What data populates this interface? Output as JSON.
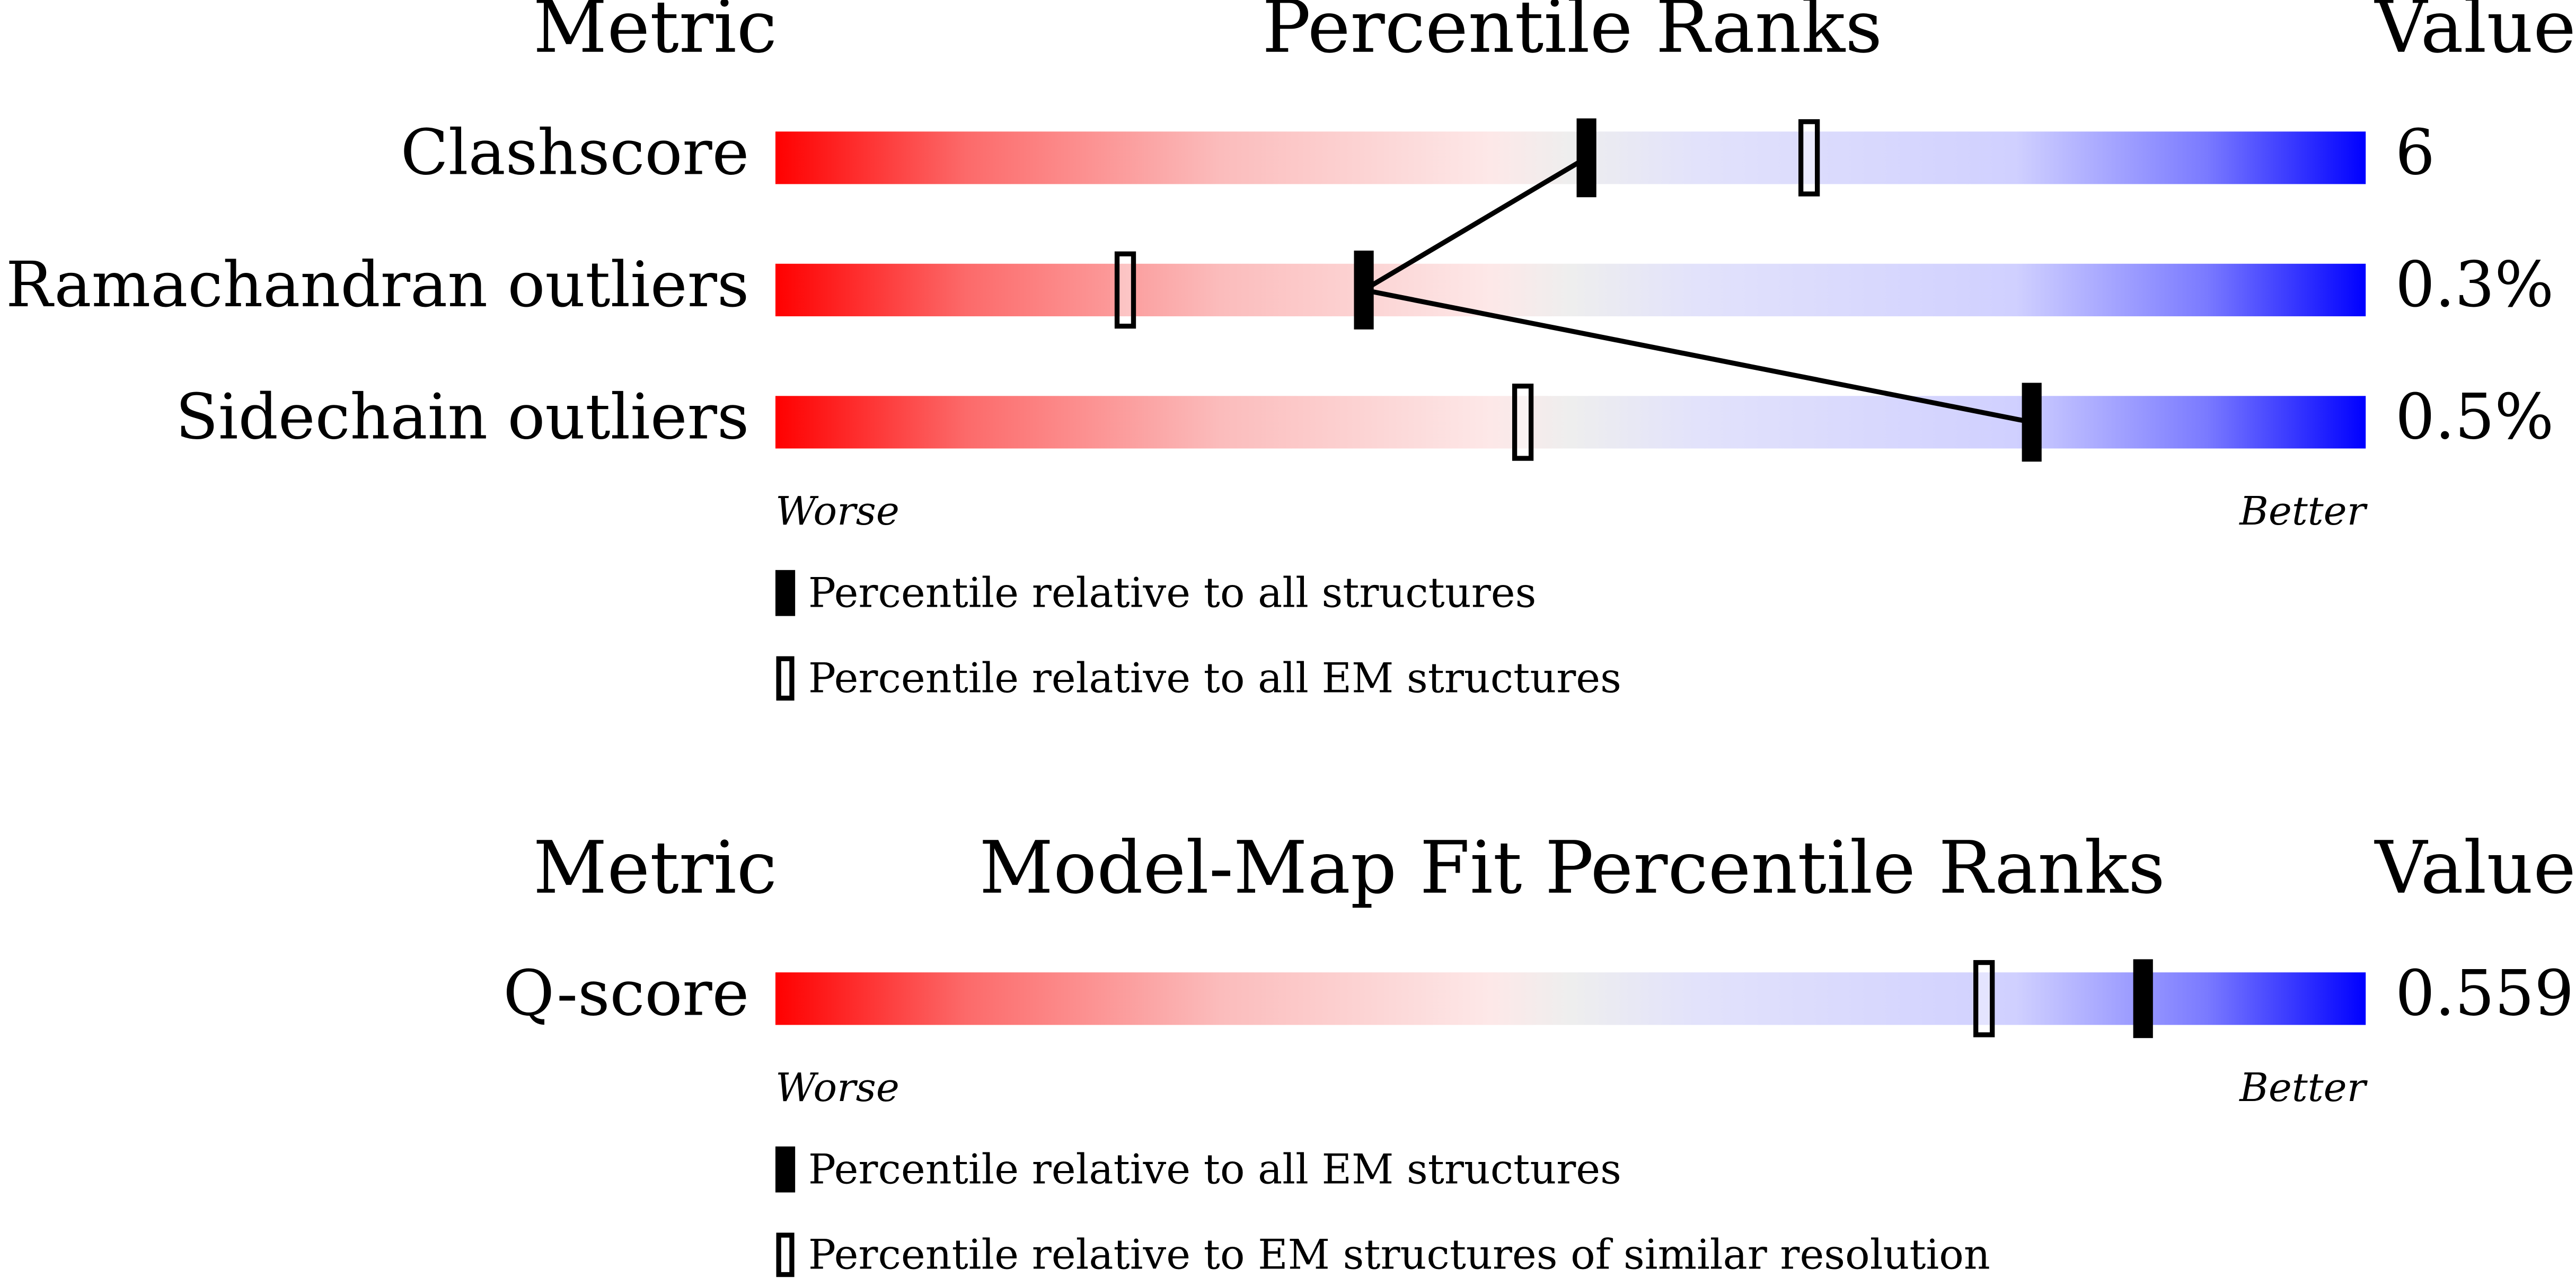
{
  "chart_data": [
    {
      "type": "percentile-slider",
      "metric_header": "Metric",
      "title": "Percentile Ranks",
      "value_header": "Value",
      "categories": [
        "Clashscore",
        "Ramachandran outliers",
        "Sidechain outliers"
      ],
      "values": [
        6,
        0.3,
        0.5
      ],
      "value_labels": [
        "6",
        "0.3%",
        "0.5%"
      ],
      "xlim": [
        0,
        100
      ],
      "worse": "Worse",
      "better": "Better",
      "series": [
        {
          "name": "Percentile relative to all structures",
          "color": "#000000",
          "style": "filled",
          "connected": true,
          "values": [
            51,
            37,
            79
          ]
        },
        {
          "name": "Percentile relative to all EM structures",
          "color": "#000000",
          "style": "open",
          "connected": false,
          "values": [
            65,
            22,
            47
          ]
        }
      ]
    },
    {
      "type": "percentile-slider",
      "metric_header": "Metric",
      "title": "Model-Map Fit Percentile Ranks",
      "value_header": "Value",
      "categories": [
        "Q-score"
      ],
      "values": [
        0.559
      ],
      "xlim": [
        0,
        100
      ],
      "worse": "Worse",
      "better": "Better",
      "series": [
        {
          "name": "Percentile relative to all EM structures",
          "color": "#000000",
          "style": "filled",
          "connected": true,
          "values": [
            86
          ]
        },
        {
          "name": "Percentile relative to EM structures of similar resolution",
          "color": "#000000",
          "style": "open",
          "connected": false,
          "values": [
            76
          ]
        }
      ]
    }
  ]
}
